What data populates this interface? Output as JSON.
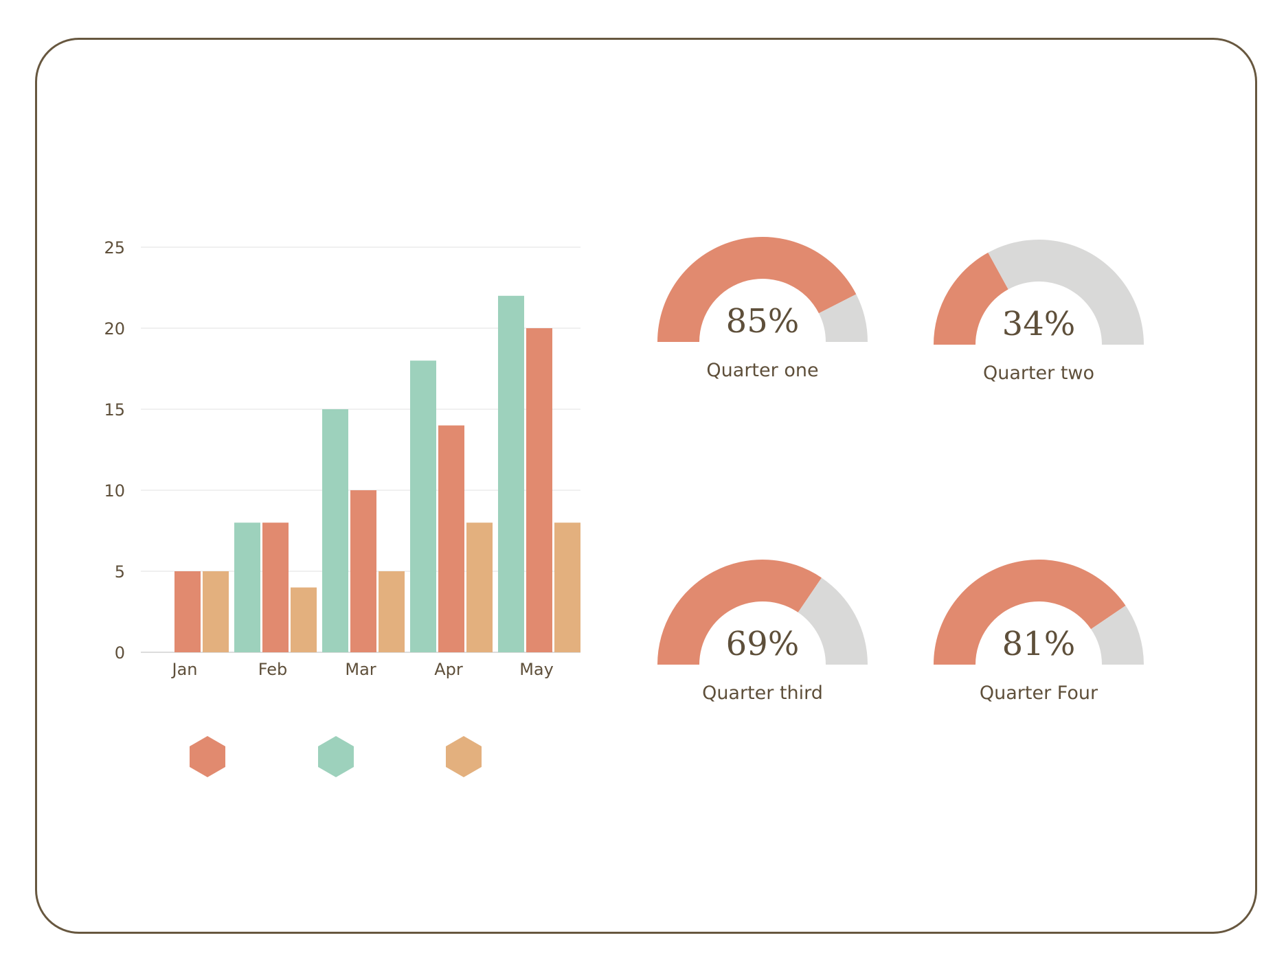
{
  "colors": {
    "salmon": "#e18a6f",
    "mint": "#9dd1bc",
    "tan": "#e3b07e",
    "track": "#d9d9d8",
    "text": "#5e4f3a",
    "frame": "#67573f",
    "grid": "#ebebeb"
  },
  "chart_data": [
    {
      "type": "bar",
      "title": "",
      "xlabel": "",
      "ylabel": "",
      "ylim": [
        0,
        25
      ],
      "yticks": [
        0,
        5,
        10,
        15,
        20,
        25
      ],
      "grid": true,
      "legend": "bottom",
      "categories": [
        "Jan",
        "Feb",
        "Mar",
        "Apr",
        "May"
      ],
      "series": [
        {
          "color": "#9dd1bc",
          "values": [
            0,
            8,
            15,
            18,
            22
          ]
        },
        {
          "color": "#e18a6f",
          "values": [
            5,
            8,
            10,
            14,
            20
          ]
        },
        {
          "color": "#e3b07e",
          "values": [
            5,
            4,
            5,
            8,
            8
          ]
        }
      ],
      "legend_markers": [
        "#e18a6f",
        "#9dd1bc",
        "#e3b07e"
      ]
    },
    {
      "type": "gauge",
      "gauges": [
        {
          "label": "Quarter one",
          "value_text": "85%",
          "fraction": 0.85
        },
        {
          "label": "Quarter two",
          "value_text": "34%",
          "fraction": 0.34
        },
        {
          "label": "Quarter third",
          "value_text": "69%",
          "fraction": 0.69
        },
        {
          "label": "Quarter Four",
          "value_text": "81%",
          "fraction": 0.81
        }
      ]
    }
  ]
}
